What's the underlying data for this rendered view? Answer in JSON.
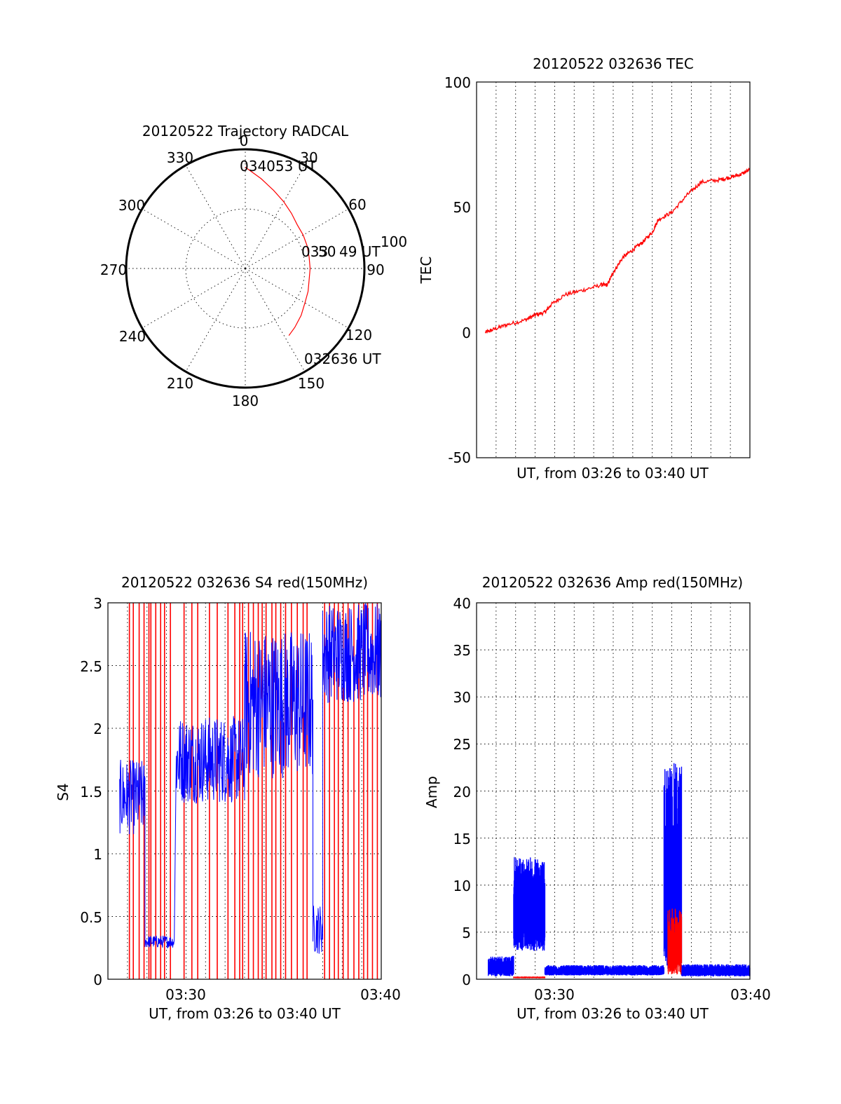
{
  "chart_data": [
    {
      "id": "polar",
      "type": "polar-trajectory",
      "title": "20120522 Trajectory RADCAL",
      "angle_labels": [
        "0",
        "30",
        "60",
        "90",
        "120",
        "150",
        "180",
        "210",
        "240",
        "270",
        "300",
        "330"
      ],
      "radius_label": "100",
      "start_label": "032636 UT",
      "end_label": "034053 UT",
      "mid_label_a": "033",
      "mid_label_b": "50",
      "mid_label_c": "49 UT",
      "trajectory": {
        "color": "#ff0000",
        "points": [
          [
            0,
            100
          ],
          [
            10,
            90
          ],
          [
            20,
            82
          ],
          [
            30,
            76
          ],
          [
            40,
            71
          ],
          [
            50,
            67
          ],
          [
            60,
            66
          ],
          [
            70,
            65
          ],
          [
            80,
            64
          ],
          [
            90,
            64
          ],
          [
            100,
            64
          ],
          [
            110,
            66
          ],
          [
            120,
            68
          ],
          [
            130,
            72
          ],
          [
            140,
            76
          ],
          [
            147,
            79
          ]
        ]
      }
    },
    {
      "id": "tec",
      "type": "line",
      "title": "20120522 032636 TEC",
      "ylabel": "TEC",
      "xlabel": "UT, from 03:26 to 03:40 UT",
      "ylim": [
        -50,
        100
      ],
      "yticks": [
        "100",
        "50",
        "0",
        "-50"
      ],
      "xlim_minutes": [
        0,
        14
      ],
      "series": [
        {
          "color": "#ff0000",
          "x": [
            0.45,
            0.8,
            1.5,
            2.5,
            3.0,
            3.5,
            3.8,
            4.5,
            5.5,
            6.4,
            6.7,
            7.0,
            7.5,
            8.0,
            8.5,
            9.0,
            9.3,
            10.0,
            10.8,
            11.5,
            12.5,
            13.0,
            13.5,
            14.0
          ],
          "y": [
            0,
            1,
            3,
            5,
            7,
            8,
            11,
            15,
            17,
            19,
            19,
            24,
            30,
            33,
            36,
            40,
            45,
            48,
            55,
            60,
            61,
            62,
            63,
            65
          ]
        }
      ]
    },
    {
      "id": "s4",
      "type": "line",
      "title": "20120522 032636 S4 red(150MHz)",
      "ylabel": "S4",
      "xlabel": "UT, from 03:26 to 03:40 UT",
      "ylim": [
        0,
        3
      ],
      "yticks": [
        "3",
        "2.5",
        "2",
        "1.5",
        "1",
        "0.5",
        "0"
      ],
      "xticks": [
        "03:30",
        "03:40"
      ],
      "xlim_minutes": [
        0,
        14
      ],
      "red_spike_times": [
        1.1,
        1.3,
        1.6,
        1.85,
        2.1,
        2.2,
        2.45,
        2.7,
        2.9,
        3.2,
        3.9,
        4.3,
        4.6,
        5.2,
        5.6,
        6.15,
        6.5,
        6.75,
        6.9,
        7.2,
        7.45,
        7.7,
        7.9,
        8.1,
        8.4,
        8.6,
        8.85,
        9.1,
        9.4,
        9.7,
        10.0,
        10.2,
        11.1,
        11.35,
        11.6,
        11.8,
        12.05,
        12.3,
        12.6,
        12.85,
        13.1,
        13.3,
        13.55,
        13.8
      ],
      "blue_segments": [
        {
          "from": 0.6,
          "to": 1.9,
          "base": 1.45,
          "amp": 0.3
        },
        {
          "from": 1.9,
          "to": 3.4,
          "base": 0.3,
          "amp": 0.05
        },
        {
          "from": 3.5,
          "to": 7.0,
          "base": 1.75,
          "amp": 0.35
        },
        {
          "from": 7.0,
          "to": 10.5,
          "base": 2.2,
          "amp": 0.6
        },
        {
          "from": 10.5,
          "to": 11.0,
          "base": 0.4,
          "amp": 0.2
        },
        {
          "from": 11.0,
          "to": 14.0,
          "base": 2.6,
          "amp": 0.4
        }
      ]
    },
    {
      "id": "amp",
      "type": "line",
      "title": "20120522 032636 Amp red(150MHz)",
      "ylabel": "Amp",
      "xlabel": "UT, from 03:26 to 03:40 UT",
      "ylim": [
        0,
        40
      ],
      "yticks": [
        "40",
        "35",
        "30",
        "25",
        "20",
        "15",
        "10",
        "5",
        "0"
      ],
      "xticks": [
        "03:30",
        "03:40"
      ],
      "xlim_minutes": [
        0,
        14
      ],
      "blue_segments": [
        {
          "from": 0.6,
          "to": 1.9,
          "low": 0.3,
          "high": 2.5
        },
        {
          "from": 1.9,
          "to": 3.5,
          "low": 3.0,
          "high": 13.0
        },
        {
          "from": 3.5,
          "to": 9.6,
          "low": 0.4,
          "high": 1.5
        },
        {
          "from": 9.6,
          "to": 10.5,
          "low": 1.0,
          "high": 23.0
        },
        {
          "from": 10.5,
          "to": 14.0,
          "low": 0.3,
          "high": 1.6
        }
      ],
      "red_segments": [
        {
          "from": 1.9,
          "to": 3.5,
          "low": 0.1,
          "high": 0.3
        },
        {
          "from": 9.8,
          "to": 10.5,
          "low": 0.5,
          "high": 7.5
        }
      ]
    }
  ]
}
